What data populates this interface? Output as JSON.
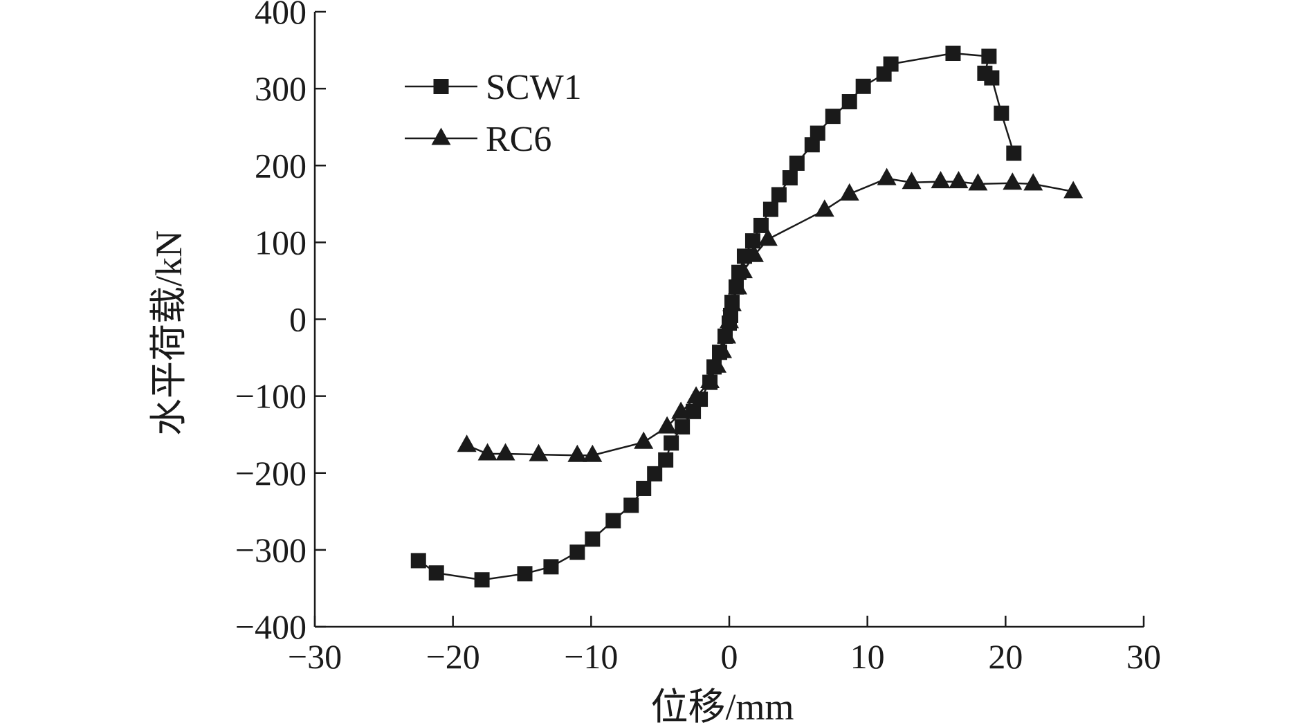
{
  "chart_data": {
    "type": "line",
    "xlabel": "位移/mm",
    "ylabel": "水平荷载/kN",
    "xlim": [
      -30,
      30
    ],
    "ylim": [
      -400,
      400
    ],
    "xticks": [
      -30,
      -20,
      -10,
      0,
      10,
      20,
      30
    ],
    "yticks": [
      -400,
      -300,
      -200,
      -100,
      0,
      100,
      200,
      300,
      400
    ],
    "xtick_labels": [
      "−30",
      "−20",
      "−10",
      "0",
      "10",
      "20",
      "30"
    ],
    "ytick_labels": [
      "−400",
      "−300",
      "−200",
      "−100",
      "0",
      "100",
      "200",
      "300",
      "400"
    ],
    "grid": false,
    "legend_position": "top-left",
    "series": [
      {
        "name": "SCW1",
        "marker": "square",
        "color": "#1a1a1a",
        "points": [
          [
            -22.5,
            -314
          ],
          [
            -21.2,
            -330
          ],
          [
            -17.9,
            -339
          ],
          [
            -14.8,
            -331
          ],
          [
            -12.9,
            -322
          ],
          [
            -11.0,
            -303
          ],
          [
            -9.9,
            -286
          ],
          [
            -8.4,
            -262
          ],
          [
            -7.1,
            -242
          ],
          [
            -6.2,
            -220
          ],
          [
            -5.4,
            -201
          ],
          [
            -4.6,
            -183
          ],
          [
            -4.2,
            -161
          ],
          [
            -3.4,
            -140
          ],
          [
            -2.6,
            -120
          ],
          [
            -2.1,
            -104
          ],
          [
            -1.4,
            -82
          ],
          [
            -1.1,
            -62
          ],
          [
            -0.7,
            -43
          ],
          [
            -0.3,
            -22
          ],
          [
            0.0,
            -5
          ],
          [
            0.1,
            5
          ],
          [
            0.2,
            22
          ],
          [
            0.5,
            42
          ],
          [
            0.7,
            61
          ],
          [
            1.1,
            82
          ],
          [
            1.7,
            102
          ],
          [
            2.3,
            122
          ],
          [
            3.0,
            143
          ],
          [
            3.6,
            162
          ],
          [
            4.4,
            184
          ],
          [
            4.9,
            203
          ],
          [
            6.0,
            227
          ],
          [
            6.4,
            242
          ],
          [
            7.5,
            264
          ],
          [
            8.7,
            283
          ],
          [
            9.7,
            303
          ],
          [
            11.2,
            319
          ],
          [
            11.7,
            332
          ],
          [
            16.2,
            346
          ],
          [
            18.8,
            342
          ],
          [
            18.5,
            320
          ],
          [
            19.0,
            314
          ],
          [
            19.7,
            268
          ],
          [
            20.6,
            216
          ]
        ]
      },
      {
        "name": "RC6",
        "marker": "triangle",
        "color": "#1a1a1a",
        "points": [
          [
            -19.0,
            -164
          ],
          [
            -17.5,
            -175
          ],
          [
            -16.2,
            -175
          ],
          [
            -13.8,
            -176
          ],
          [
            -11.0,
            -177
          ],
          [
            -9.9,
            -177
          ],
          [
            -6.2,
            -160
          ],
          [
            -4.5,
            -140
          ],
          [
            -3.5,
            -121
          ],
          [
            -2.4,
            -101
          ],
          [
            -1.4,
            -81
          ],
          [
            -0.9,
            -61
          ],
          [
            -0.5,
            -42
          ],
          [
            -0.2,
            -23
          ],
          [
            0.0,
            -3
          ],
          [
            0.2,
            19
          ],
          [
            0.6,
            41
          ],
          [
            1.0,
            62
          ],
          [
            1.8,
            83
          ],
          [
            2.8,
            104
          ],
          [
            6.9,
            142
          ],
          [
            8.7,
            163
          ],
          [
            11.4,
            183
          ],
          [
            13.2,
            178
          ],
          [
            15.3,
            179
          ],
          [
            16.6,
            179
          ],
          [
            18.0,
            176
          ],
          [
            20.5,
            177
          ],
          [
            22.0,
            176
          ],
          [
            24.9,
            166
          ]
        ]
      }
    ]
  }
}
